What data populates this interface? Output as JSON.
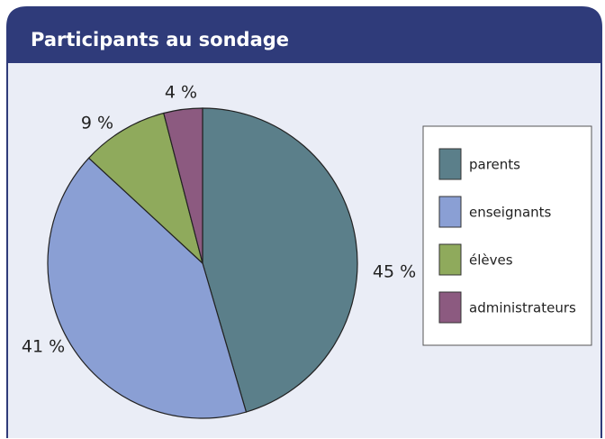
{
  "chart_data": {
    "type": "pie",
    "title": "Participants au sondage",
    "categories": [
      "parents",
      "enseignants",
      "élèves",
      "administrateurs"
    ],
    "values": [
      45,
      41,
      9,
      4
    ],
    "value_labels": [
      "45 %",
      "41 %",
      "9 %",
      "4 %"
    ],
    "colors": [
      "#5b7f8a",
      "#8a9fd4",
      "#8faa5c",
      "#8c5a80"
    ],
    "legend": "right"
  }
}
